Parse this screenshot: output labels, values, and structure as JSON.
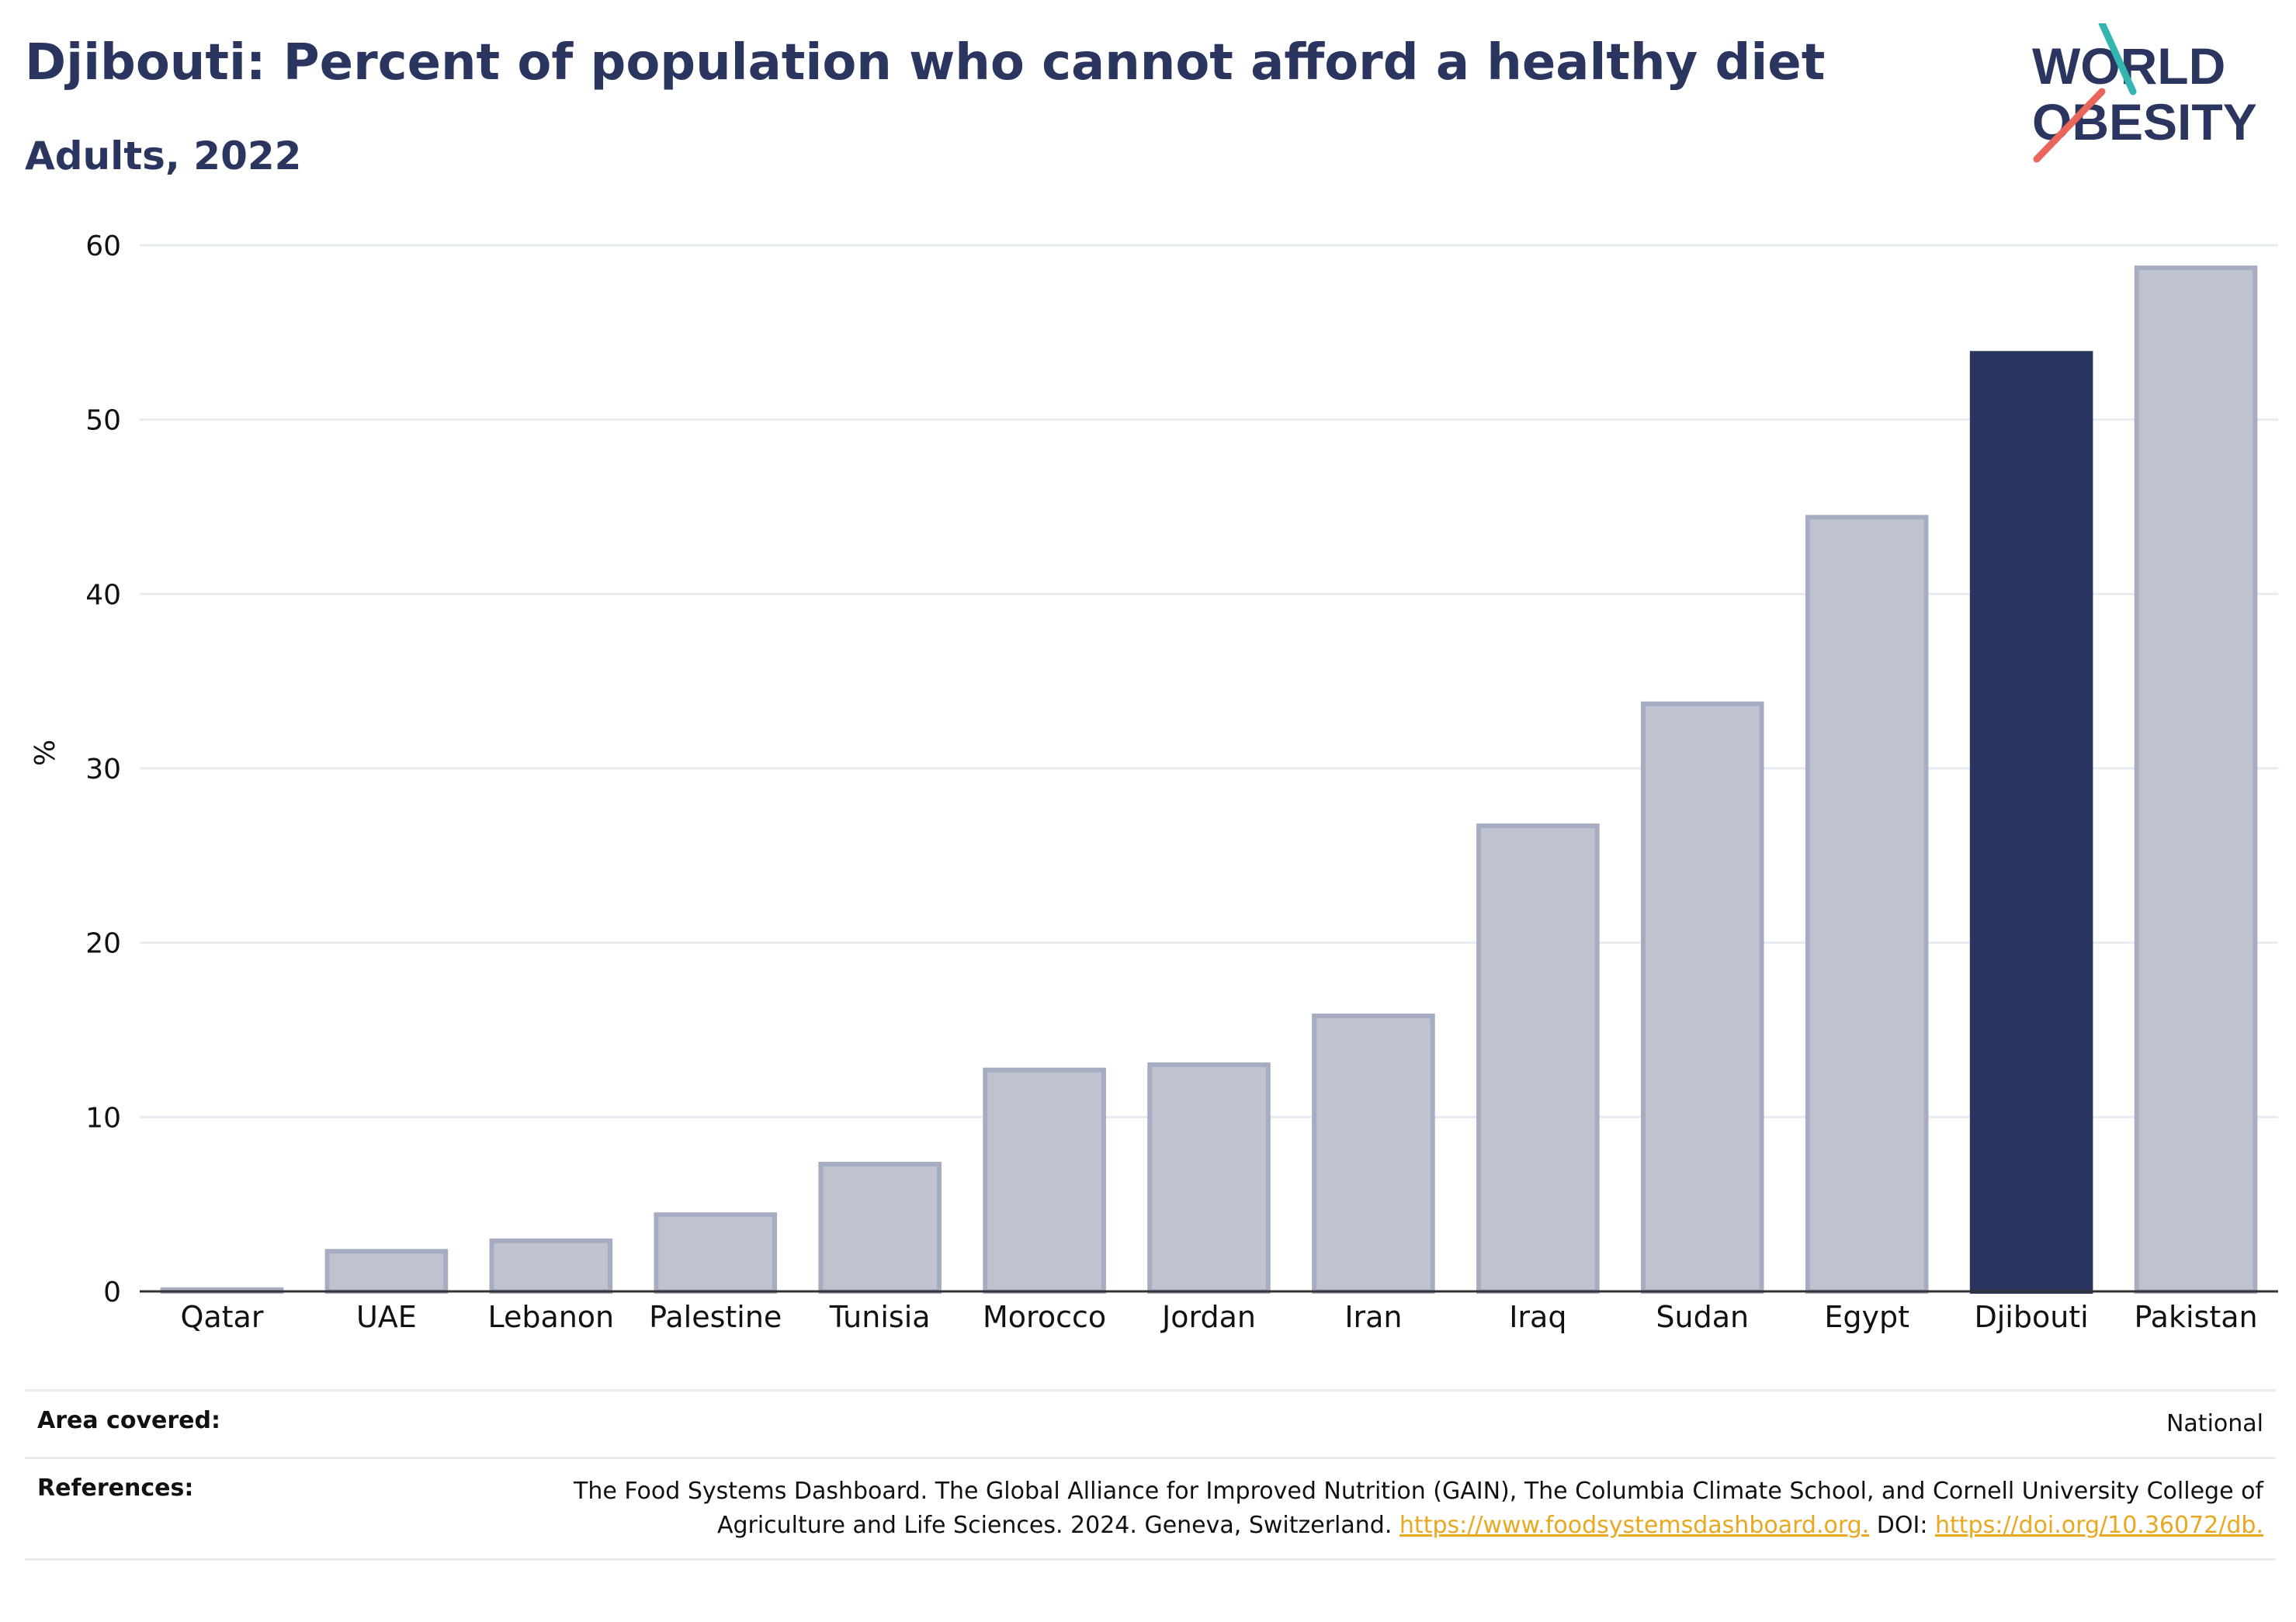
{
  "header": {
    "title": "Djibouti: Percent of population who cannot afford a healthy diet",
    "subtitle": "Adults, 2022"
  },
  "logo": {
    "line1": "WORLD",
    "line2": "OBESITY",
    "accent_teal": "#35b5b0",
    "accent_coral": "#e8675a"
  },
  "chart_data": {
    "type": "bar",
    "categories": [
      "Qatar",
      "UAE",
      "Lebanon",
      "Palestine",
      "Tunisia",
      "Morocco",
      "Jordan",
      "Iran",
      "Iraq",
      "Sudan",
      "Egypt",
      "Djibouti",
      "Pakistan"
    ],
    "values": [
      0.1,
      2.3,
      2.9,
      4.4,
      7.3,
      12.7,
      13.0,
      15.8,
      26.7,
      33.7,
      44.4,
      53.8,
      58.7
    ],
    "highlight": "Djibouti",
    "ylabel": "%",
    "ylim": [
      0,
      60
    ],
    "yticks": [
      0,
      10,
      20,
      30,
      40,
      50,
      60
    ],
    "grid": true,
    "colors": {
      "bar": "#bfc3d0",
      "bar_border": "#a6acc2",
      "highlight": "#2a3560",
      "grid": "#e9ebf3",
      "axis": "#333333"
    }
  },
  "footer": {
    "area_label": "Area covered:",
    "area_value": "National",
    "ref_label": "References:",
    "ref_text": "The Food Systems Dashboard. The Global Alliance for Improved Nutrition (GAIN), The Columbia Climate School, and Cornell University College of Agriculture and Life Sciences. 2024. Geneva, Switzerland.",
    "ref_link1": "https://www.foodsystemsdashboard.org.",
    "ref_doi": "DOI:",
    "ref_link2": "https://doi.org/10.36072/db."
  }
}
